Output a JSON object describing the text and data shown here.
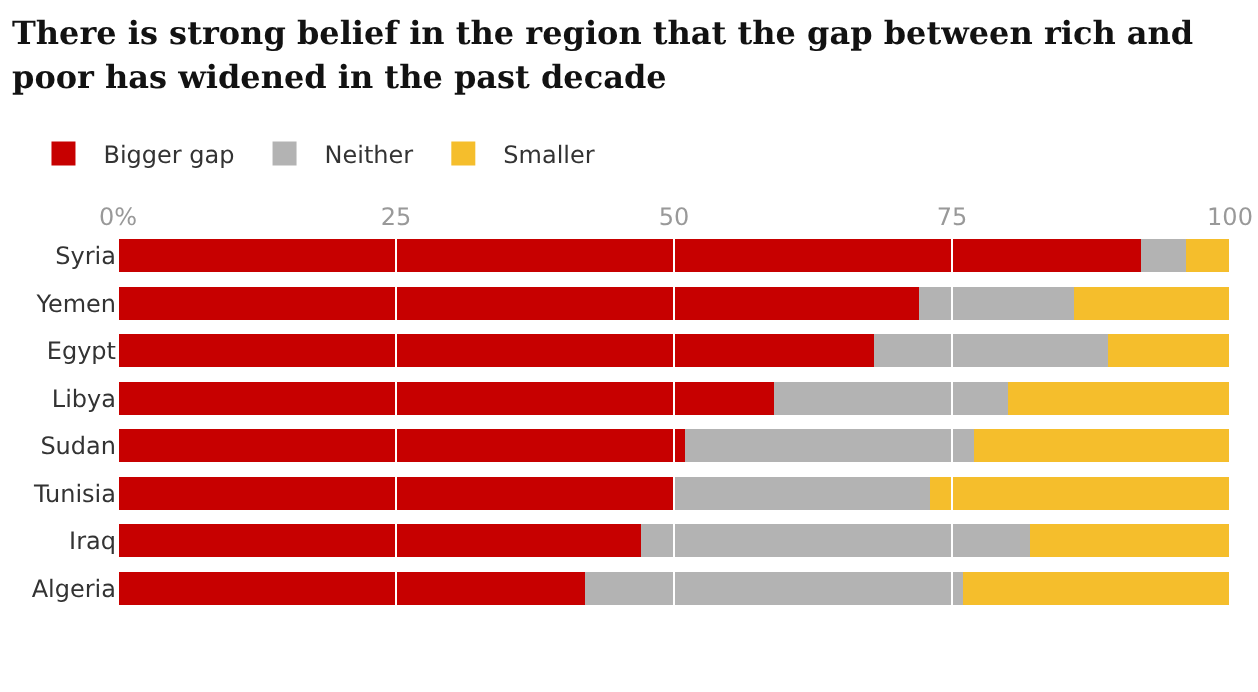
{
  "chart_data": {
    "type": "bar",
    "orientation": "horizontal",
    "stacked": true,
    "title": "There is strong belief in the region that the gap between rich and poor has widened in the past decade",
    "categories": [
      "Syria",
      "Yemen",
      "Egypt",
      "Libya",
      "Sudan",
      "Tunisia",
      "Iraq",
      "Algeria"
    ],
    "series": [
      {
        "name": "Bigger gap",
        "color": "#c70000",
        "values": [
          92,
          72,
          68,
          59,
          51,
          50,
          47,
          42
        ]
      },
      {
        "name": "Neither",
        "color": "#b3b3b3",
        "values": [
          4,
          14,
          21,
          21,
          26,
          23,
          35,
          34
        ]
      },
      {
        "name": "Smaller",
        "color": "#f5be2c",
        "values": [
          4,
          14,
          11,
          20,
          23,
          27,
          18,
          24
        ]
      }
    ],
    "xlim": [
      0,
      100
    ],
    "xticks": [
      {
        "value": 0,
        "label": "0%"
      },
      25,
      50,
      75,
      100
    ],
    "grid": "x",
    "legend": "top left"
  }
}
